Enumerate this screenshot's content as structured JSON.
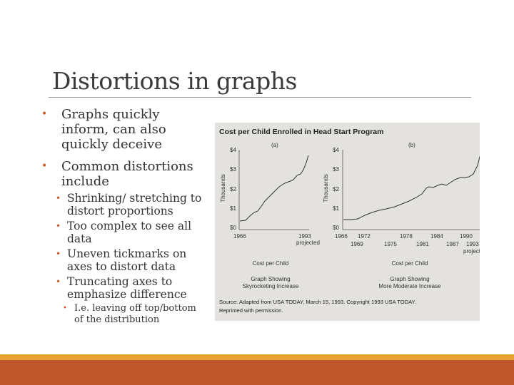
{
  "slide": {
    "title": "Distortions in graphs",
    "bullets": [
      {
        "text": "Graphs quickly inform, can also quickly deceive"
      },
      {
        "text": "Common distortions include"
      }
    ],
    "sub_bullets": [
      {
        "text": "Shrinking/ stretching to distort proportions"
      },
      {
        "text": "Too complex to see all data"
      },
      {
        "text": "Uneven tickmarks on axes to distort data"
      },
      {
        "text": "Truncating axes to emphasize difference"
      }
    ],
    "sub_sub_bullets": [
      {
        "text": "I.e. leaving off top/bottom of the distribution"
      }
    ],
    "colors": {
      "accent": "#c0562b",
      "accent_light": "#e7a235",
      "bullet": "#c85a27"
    }
  },
  "figure": {
    "heading": "Cost per Child Enrolled in Head Start Program",
    "panel_a": {
      "label": "(a)",
      "yaxis_label": "Thousands",
      "yticks": [
        "$4",
        "$3",
        "$2",
        "$1",
        "$0"
      ],
      "xticks": [
        "1966",
        "1993"
      ],
      "xnote": "projected",
      "xlabel": "Cost per Child",
      "caption_line1": "Graph Showing",
      "caption_line2": "Skyrocketing Increase"
    },
    "panel_b": {
      "label": "(b)",
      "yaxis_label": "Thousands",
      "yticks": [
        "$4",
        "$3",
        "$2",
        "$1",
        "$0"
      ],
      "xticks_top": [
        "1966",
        "1972",
        "1978",
        "1984",
        "1990"
      ],
      "xticks_bottom": [
        "1969",
        "1975",
        "1981",
        "1987",
        "1993"
      ],
      "xnote": "projected",
      "xlabel": "Cost per Child",
      "caption_line1": "Graph Showing",
      "caption_line2": "More Moderate Increase"
    },
    "source_line1": "Source: Adapted from USA TODAY, March 15, 1993. Copyright 1993 USA TODAY.",
    "source_line2": "Reprinted with permission."
  }
}
